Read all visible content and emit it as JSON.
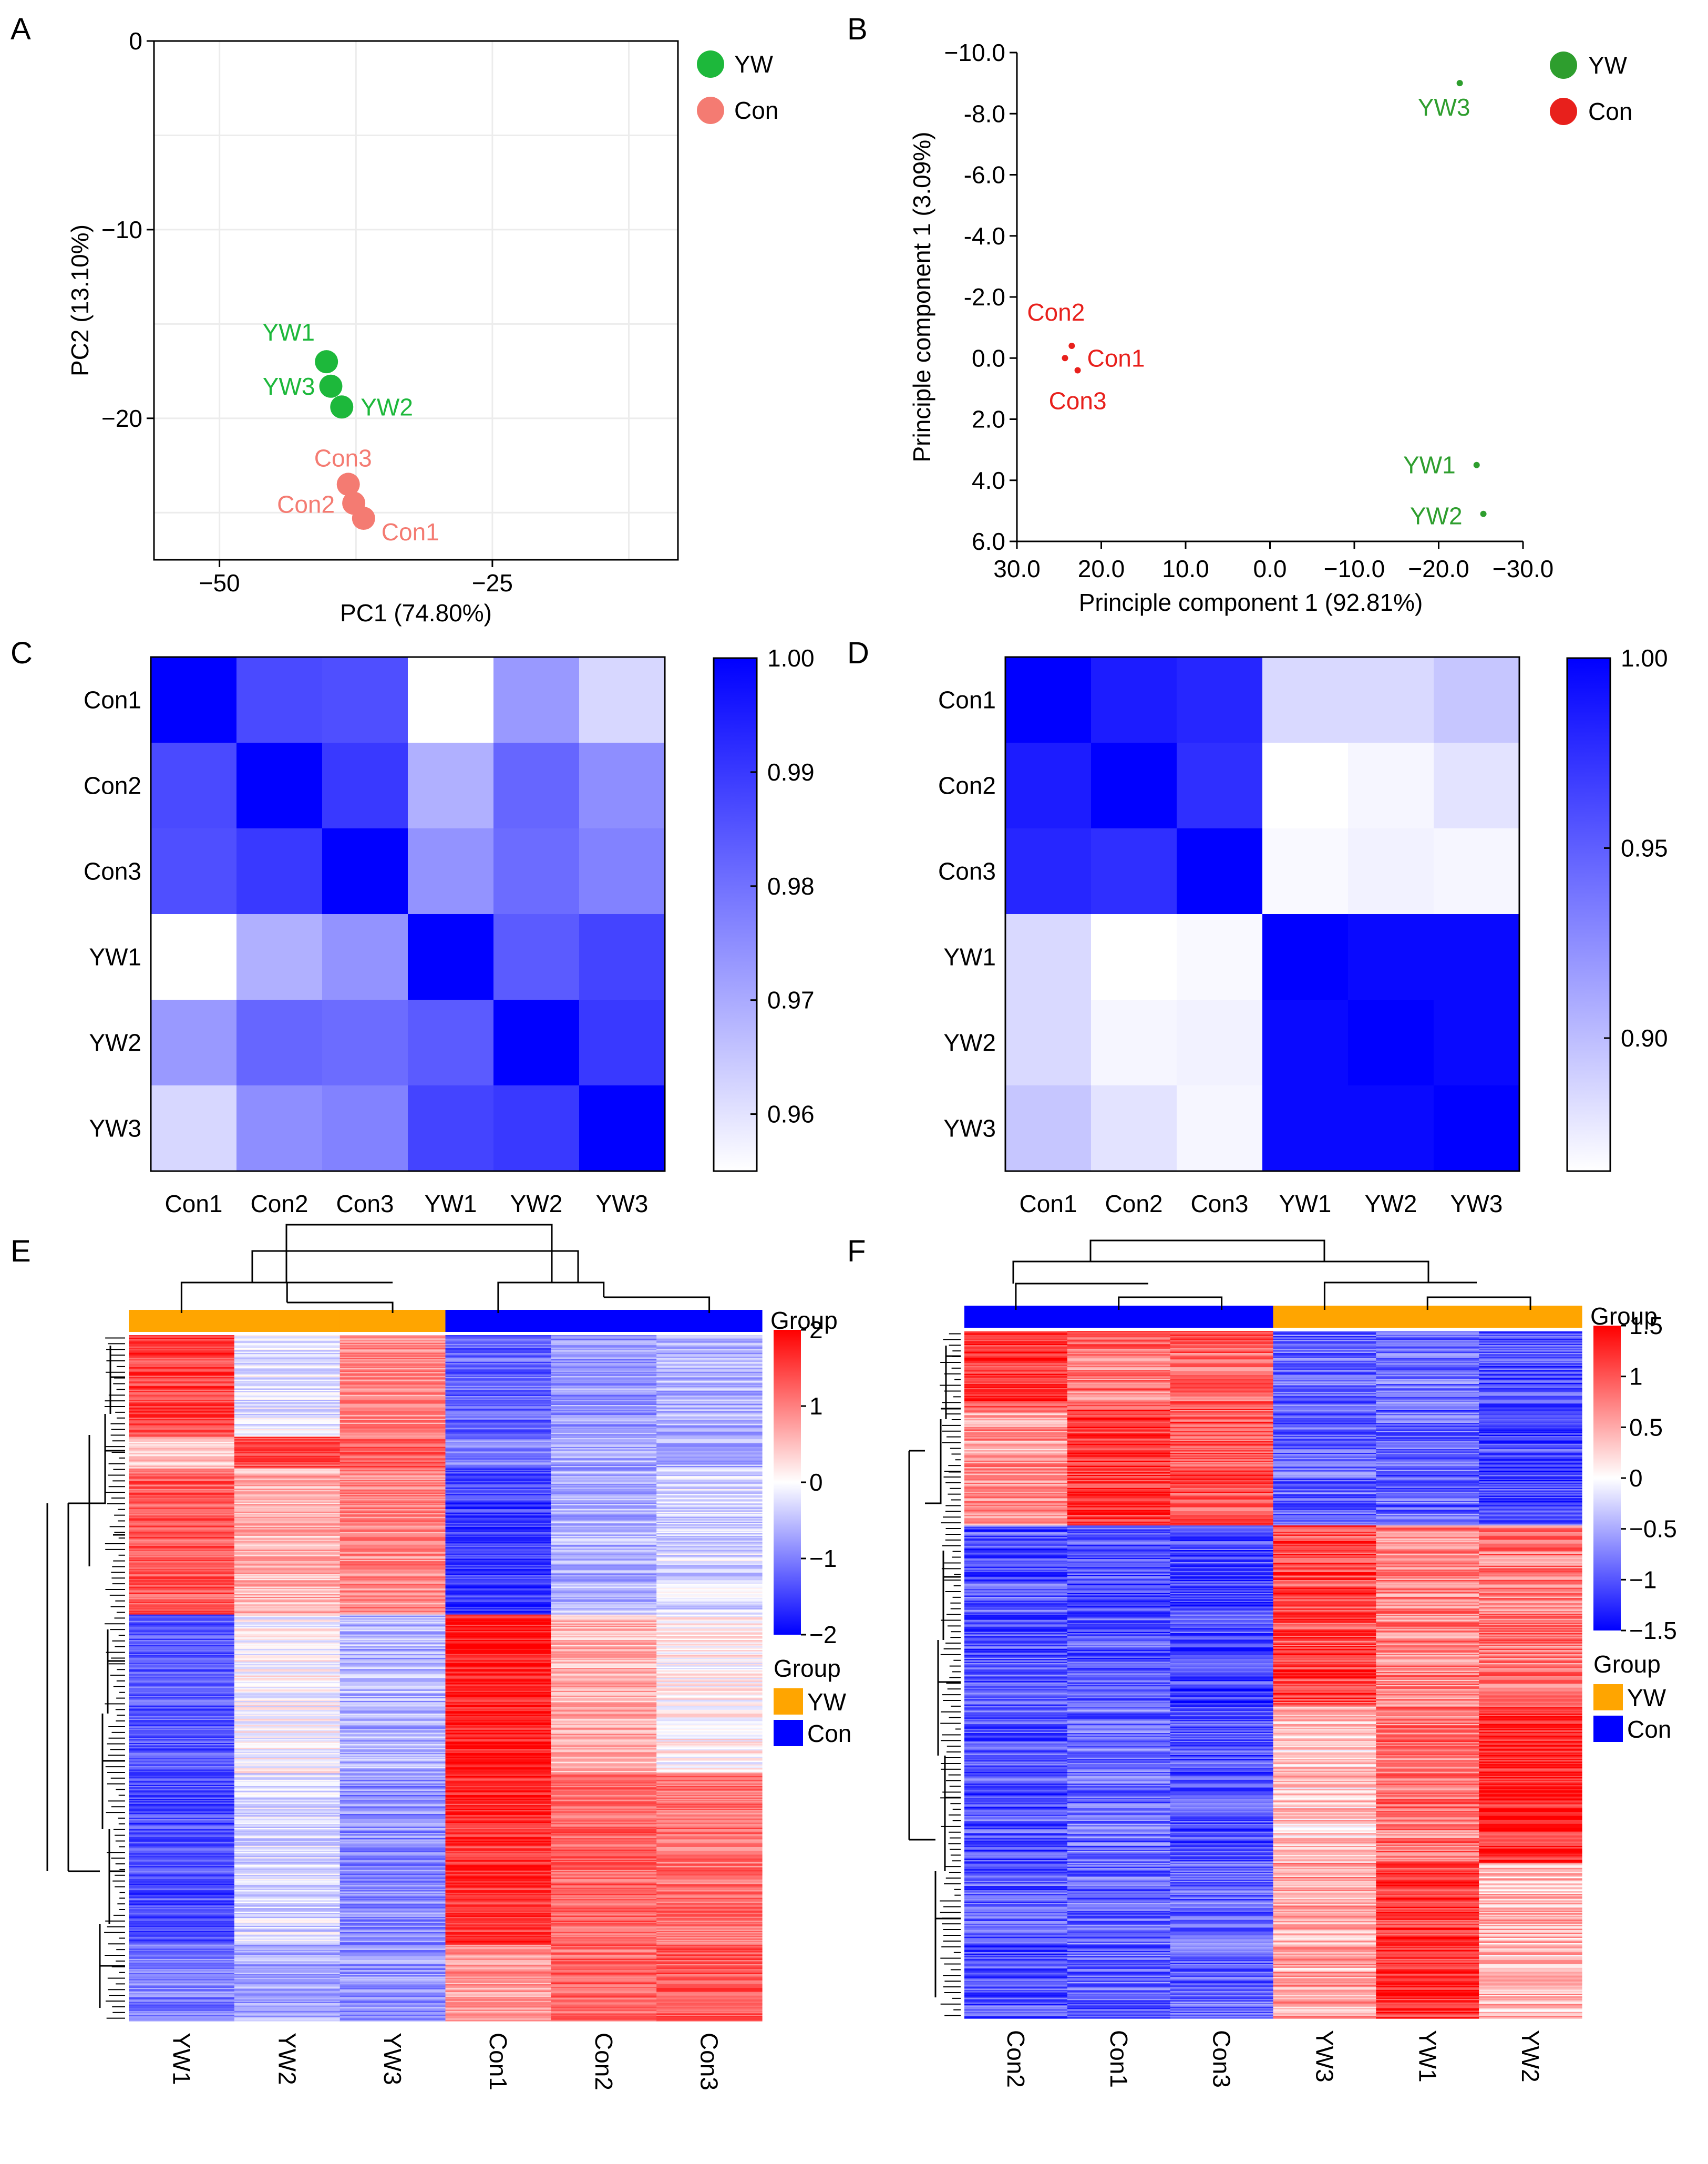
{
  "figure": {
    "panel_labels": [
      "A",
      "B",
      "C",
      "D",
      "E",
      "F"
    ]
  },
  "colors": {
    "yw_a": "#1db83b",
    "con_a": "#f47b72",
    "yw_b": "#2e9e2e",
    "con_b": "#e8201c",
    "heat_blue": "#0000ff",
    "heat_red": "#ff0000",
    "group_yw": "#ffa500",
    "group_con": "#0000ff"
  },
  "chart_data": [
    {
      "id": "A",
      "type": "scatter",
      "xlabel": "PC1 (74.80%)",
      "ylabel": "PC2 (13.10%)",
      "xlim": [
        -56,
        -8
      ],
      "ylim": [
        -27.5,
        0
      ],
      "x_ticks": [
        -50,
        -25
      ],
      "y_ticks": [
        0,
        -10,
        -20
      ],
      "grid": true,
      "legend": [
        {
          "name": "YW"
        },
        {
          "name": "Con"
        }
      ],
      "points": [
        {
          "label": "YW1",
          "group": "YW",
          "x": -40.2,
          "y": -17.0
        },
        {
          "label": "YW3",
          "group": "YW",
          "x": -39.8,
          "y": -18.3
        },
        {
          "label": "YW2",
          "group": "YW",
          "x": -38.8,
          "y": -19.4
        },
        {
          "label": "Con3",
          "group": "Con",
          "x": -38.2,
          "y": -23.5
        },
        {
          "label": "Con2",
          "group": "Con",
          "x": -37.7,
          "y": -24.5
        },
        {
          "label": "Con1",
          "group": "Con",
          "x": -36.8,
          "y": -25.3
        }
      ]
    },
    {
      "id": "B",
      "type": "scatter",
      "xlabel": "Principle component 1 (92.81%)",
      "ylabel": "Principle component 1 (3.09%)",
      "xlim": [
        30,
        -30
      ],
      "ylim": [
        6,
        -10
      ],
      "x_ticks": [
        30.0,
        20.0,
        10.0,
        0.0,
        -10.0,
        -20.0,
        -30.0
      ],
      "x_tick_labels": [
        "30.0",
        "20.0",
        "10.0",
        "0.0",
        "−10.0",
        "−20.0",
        "−30.0"
      ],
      "y_ticks": [
        -10.0,
        -8.0,
        -6.0,
        -4.0,
        -2.0,
        0.0,
        2.0,
        4.0,
        6.0
      ],
      "y_tick_labels": [
        "−10.0",
        "-8.0",
        "-6.0",
        "-4.0",
        "-2.0",
        "0.0",
        "2.0",
        "4.0",
        "6.0"
      ],
      "grid": false,
      "legend": [
        {
          "name": "YW"
        },
        {
          "name": "Con"
        }
      ],
      "points": [
        {
          "label": "YW3",
          "group": "YW",
          "x": -22.5,
          "y": -9.0
        },
        {
          "label": "Con2",
          "group": "Con",
          "x": 23.5,
          "y": -0.4
        },
        {
          "label": "Con1",
          "group": "Con",
          "x": 24.3,
          "y": 0.0
        },
        {
          "label": "Con3",
          "group": "Con",
          "x": 22.8,
          "y": 0.4
        },
        {
          "label": "YW1",
          "group": "YW",
          "x": -24.5,
          "y": 3.5
        },
        {
          "label": "YW2",
          "group": "YW",
          "x": -25.3,
          "y": 5.1
        }
      ]
    },
    {
      "id": "C",
      "type": "heatmap",
      "rows": [
        "Con1",
        "Con2",
        "Con3",
        "YW1",
        "YW2",
        "YW3"
      ],
      "cols": [
        "Con1",
        "Con2",
        "Con3",
        "YW1",
        "YW2",
        "YW3"
      ],
      "colorbar": {
        "min": 0.955,
        "max": 1.0,
        "ticks": [
          1.0,
          0.99,
          0.98,
          0.97,
          0.96
        ],
        "tick_labels": [
          "1.00",
          "0.99",
          "0.98",
          "0.97",
          "0.96"
        ]
      },
      "values": [
        [
          1.0,
          0.987,
          0.986,
          0.955,
          0.973,
          0.962
        ],
        [
          0.987,
          1.0,
          0.99,
          0.969,
          0.982,
          0.975
        ],
        [
          0.986,
          0.99,
          1.0,
          0.974,
          0.981,
          0.977
        ],
        [
          0.955,
          0.969,
          0.974,
          1.0,
          0.984,
          0.988
        ],
        [
          0.973,
          0.982,
          0.981,
          0.984,
          1.0,
          0.99
        ],
        [
          0.962,
          0.975,
          0.977,
          0.988,
          0.99,
          1.0
        ]
      ]
    },
    {
      "id": "D",
      "type": "heatmap",
      "rows": [
        "Con1",
        "Con2",
        "Con3",
        "YW1",
        "YW2",
        "YW3"
      ],
      "cols": [
        "Con1",
        "Con2",
        "Con3",
        "YW1",
        "YW2",
        "YW3"
      ],
      "colorbar": {
        "min": 0.865,
        "max": 1.0,
        "ticks": [
          1.0,
          0.95,
          0.9
        ],
        "tick_labels": [
          "1.00",
          "0.95",
          "0.90"
        ]
      },
      "values": [
        [
          1.0,
          0.985,
          0.98,
          0.885,
          0.885,
          0.895
        ],
        [
          0.985,
          1.0,
          0.975,
          0.865,
          0.87,
          0.88
        ],
        [
          0.98,
          0.975,
          1.0,
          0.868,
          0.872,
          0.87
        ],
        [
          0.885,
          0.865,
          0.868,
          1.0,
          0.995,
          0.995
        ],
        [
          0.885,
          0.87,
          0.872,
          0.995,
          1.0,
          0.995
        ],
        [
          0.895,
          0.88,
          0.87,
          0.995,
          0.995,
          1.0
        ]
      ]
    },
    {
      "id": "E",
      "type": "heatmap",
      "columns": [
        "YW1",
        "YW2",
        "YW3",
        "Con1",
        "Con2",
        "Con3"
      ],
      "column_groups": [
        "YW",
        "YW",
        "YW",
        "Con",
        "Con",
        "Con"
      ],
      "annotation_title": "Group",
      "legend_title": "Group",
      "legend": [
        {
          "name": "YW"
        },
        {
          "name": "Con"
        }
      ],
      "colorbar": {
        "min": -2,
        "max": 2,
        "ticks": [
          2,
          1,
          0,
          -1,
          -2
        ],
        "tick_labels": [
          "2",
          "1",
          "0",
          "−1",
          "−2"
        ]
      },
      "row_blocks": [
        {
          "rows": 80,
          "values": [
            1.5,
            -0.2,
            0.9,
            -1.2,
            -0.8,
            -0.6
          ]
        },
        {
          "rows": 25,
          "values": [
            0.4,
            1.4,
            1.2,
            -1.0,
            -0.7,
            -0.6
          ]
        },
        {
          "rows": 115,
          "values": [
            1.3,
            0.6,
            0.9,
            -1.5,
            -0.6,
            -0.3
          ]
        },
        {
          "rows": 125,
          "values": [
            -1.3,
            0.0,
            -0.6,
            1.8,
            0.6,
            0.1
          ]
        },
        {
          "rows": 135,
          "values": [
            -1.4,
            -0.3,
            -0.9,
            1.6,
            1.2,
            1.1
          ]
        },
        {
          "rows": 60,
          "values": [
            -1.0,
            -0.7,
            -0.8,
            0.8,
            1.2,
            1.3
          ]
        }
      ]
    },
    {
      "id": "F",
      "type": "heatmap",
      "columns": [
        "Con2",
        "Con1",
        "Con3",
        "YW3",
        "YW1",
        "YW2"
      ],
      "column_groups": [
        "Con",
        "Con",
        "Con",
        "YW",
        "YW",
        "YW"
      ],
      "annotation_title": "Group",
      "legend_title": "Group",
      "legend": [
        {
          "name": "YW"
        },
        {
          "name": "Con"
        }
      ],
      "colorbar": {
        "min": -1.5,
        "max": 1.5,
        "ticks": [
          1.5,
          1,
          0.5,
          0,
          -0.5,
          -1,
          -1.5
        ],
        "tick_labels": [
          "1.5",
          "1",
          "0.5",
          "0",
          "−0.5",
          "−1",
          "−1.5"
        ]
      },
      "row_blocks": [
        {
          "rows": 60,
          "values": [
            1.2,
            0.8,
            0.9,
            -0.9,
            -0.8,
            -1.0
          ]
        },
        {
          "rows": 90,
          "values": [
            0.6,
            1.2,
            1.0,
            -0.9,
            -0.9,
            -1.1
          ]
        },
        {
          "rows": 140,
          "values": [
            -1.0,
            -1.0,
            -1.1,
            1.1,
            0.7,
            0.8
          ]
        },
        {
          "rows": 120,
          "values": [
            -1.0,
            -0.9,
            -1.0,
            0.3,
            0.8,
            1.3
          ]
        },
        {
          "rows": 120,
          "values": [
            -1.0,
            -0.9,
            -0.9,
            0.5,
            1.2,
            0.4
          ]
        }
      ]
    }
  ]
}
